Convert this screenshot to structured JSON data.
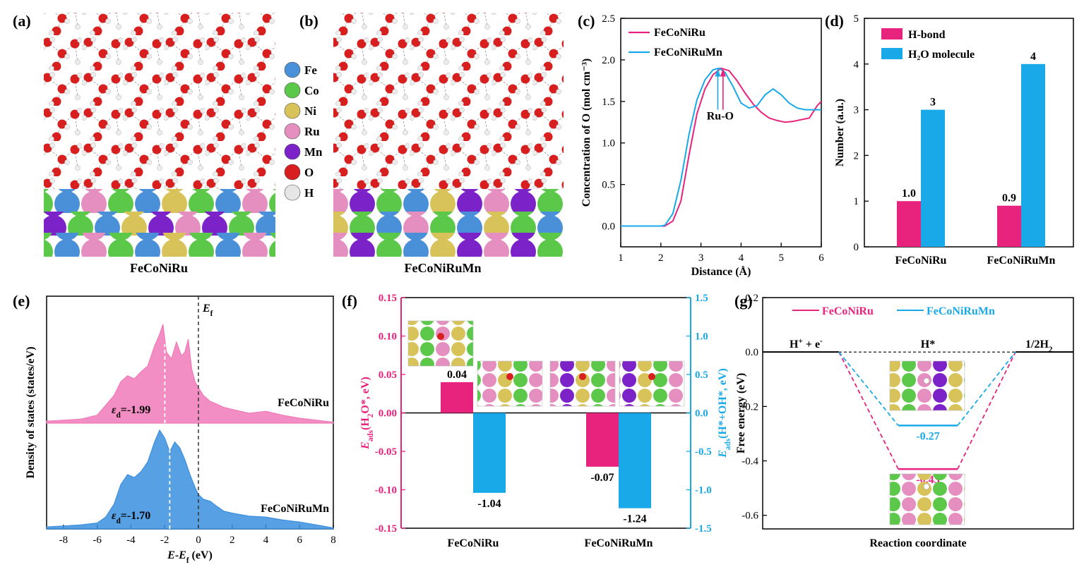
{
  "panel_labels": [
    "(a)",
    "(b)",
    "(c)",
    "(d)",
    "(e)",
    "(f)",
    "(g)"
  ],
  "colors": {
    "magenta": "#E8237D",
    "cyan": "#1AA9E8",
    "Fe": "#4a90d9",
    "Co": "#5cc84a",
    "Ni": "#d8c35a",
    "Ru": "#e48fbf",
    "Mn": "#7b22c8",
    "O": "#d81f1f",
    "H": "#e6e6e6"
  },
  "panel_a": {
    "label": "FeCoNiRu"
  },
  "panel_b": {
    "label": "FeCoNiRuMn"
  },
  "element_legend": [
    {
      "name": "Fe",
      "color": "#4a90d9"
    },
    {
      "name": "Co",
      "color": "#5cc84a"
    },
    {
      "name": "Ni",
      "color": "#d8c35a"
    },
    {
      "name": "Ru",
      "color": "#e48fbf"
    },
    {
      "name": "Mn",
      "color": "#7b22c8"
    },
    {
      "name": "O",
      "color": "#d81f1f"
    },
    {
      "name": "H",
      "color": "#e6e6e6"
    }
  ],
  "chart_data": [
    {
      "panel": "(c)",
      "type": "line",
      "xlabel": "Distance (Å)",
      "ylabel": "Concentration of O (mol cm⁻³)",
      "xlim": [
        1,
        6
      ],
      "ylim": [
        -0.25,
        2.5
      ],
      "xticks": [
        1,
        2,
        3,
        4,
        5,
        6
      ],
      "yticks": [
        0.0,
        0.5,
        1.0,
        1.5,
        2.0,
        2.5
      ],
      "ytick_labels": [
        "0.0",
        "0.5",
        "1.0",
        "1.5",
        "2.0",
        "2.5"
      ],
      "annotation": "Ru-O",
      "series": [
        {
          "name": "FeCoNiRu",
          "color": "#E8237D",
          "x": [
            1.0,
            2.0,
            2.1,
            2.3,
            2.5,
            2.7,
            2.9,
            3.1,
            3.3,
            3.5,
            3.7,
            3.9,
            4.1,
            4.3,
            4.5,
            4.7,
            4.9,
            5.1,
            5.3,
            5.5,
            5.7,
            5.9,
            6.0
          ],
          "y": [
            0.0,
            0.0,
            0.0,
            0.06,
            0.3,
            0.85,
            1.35,
            1.65,
            1.82,
            1.9,
            1.87,
            1.75,
            1.6,
            1.47,
            1.37,
            1.3,
            1.27,
            1.25,
            1.26,
            1.28,
            1.3,
            1.45,
            1.5
          ]
        },
        {
          "name": "FeCoNiRuMn",
          "color": "#1AA9E8",
          "x": [
            1.0,
            2.0,
            2.1,
            2.3,
            2.5,
            2.7,
            2.9,
            3.1,
            3.3,
            3.45,
            3.6,
            3.8,
            4.0,
            4.2,
            4.4,
            4.6,
            4.8,
            5.0,
            5.2,
            5.4,
            5.6,
            5.8,
            6.0
          ],
          "y": [
            0.0,
            0.0,
            0.01,
            0.15,
            0.55,
            1.1,
            1.52,
            1.76,
            1.88,
            1.9,
            1.85,
            1.68,
            1.48,
            1.42,
            1.45,
            1.58,
            1.65,
            1.58,
            1.48,
            1.42,
            1.4,
            1.4,
            1.4
          ]
        }
      ]
    },
    {
      "panel": "(d)",
      "type": "bar",
      "ylabel": "Number (a.u.)",
      "ylim": [
        0,
        5
      ],
      "yticks": [
        0,
        1,
        2,
        3,
        4,
        5
      ],
      "categories": [
        "FeCoNiRu",
        "FeCoNiRuMn"
      ],
      "series": [
        {
          "name": "H-bond",
          "color": "#E8237D",
          "values": [
            1.0,
            0.9
          ],
          "labels": [
            "1.0",
            "0.9"
          ]
        },
        {
          "name": "H₂O molecule",
          "color": "#1AA9E8",
          "values": [
            3,
            4
          ],
          "labels": [
            "3",
            "4"
          ]
        }
      ]
    },
    {
      "panel": "(e)",
      "type": "area",
      "xlabel": "E-E_f (eV)",
      "ylabel": "Density of states (states/eV)",
      "xlim": [
        -9,
        8
      ],
      "xticks": [
        -8,
        -6,
        -4,
        -2,
        0,
        2,
        4,
        6,
        8
      ],
      "fermi_label": "E_f",
      "series": [
        {
          "name": "FeCoNiRu",
          "color": "#f07ab8",
          "d_band_center": "-1.99",
          "d_band_center_value": -1.99,
          "x": [
            -9.0,
            -8.0,
            -7.0,
            -6.0,
            -5.5,
            -5.0,
            -4.6,
            -4.2,
            -3.8,
            -3.4,
            -3.0,
            -2.6,
            -2.3,
            -2.1,
            -1.9,
            -1.6,
            -1.3,
            -1.0,
            -0.8,
            -0.6,
            -0.4,
            -0.2,
            0.0,
            0.3,
            0.7,
            1.0,
            1.5,
            2.0,
            3.0,
            4.0,
            5.0,
            6.0,
            7.0,
            8.0
          ],
          "y": [
            0.02,
            0.03,
            0.04,
            0.08,
            0.18,
            0.28,
            0.42,
            0.48,
            0.45,
            0.52,
            0.58,
            0.78,
            0.9,
            1.0,
            0.72,
            0.65,
            0.82,
            0.68,
            0.72,
            0.85,
            0.55,
            0.42,
            0.36,
            0.28,
            0.22,
            0.2,
            0.16,
            0.14,
            0.1,
            0.12,
            0.08,
            0.05,
            0.03,
            0.01
          ]
        },
        {
          "name": "FeCoNiRuMn",
          "color": "#3a8fde",
          "d_band_center": "-1.70",
          "d_band_center_value": -1.7,
          "x": [
            -9.0,
            -8.0,
            -7.0,
            -6.0,
            -5.5,
            -5.0,
            -4.6,
            -4.2,
            -3.8,
            -3.4,
            -3.0,
            -2.6,
            -2.3,
            -2.0,
            -1.7,
            -1.4,
            -1.1,
            -0.8,
            -0.5,
            -0.2,
            0.0,
            0.3,
            0.7,
            1.0,
            1.5,
            2.0,
            3.0,
            4.0,
            5.0,
            6.0,
            7.0,
            8.0
          ],
          "y": [
            0.02,
            0.03,
            0.04,
            0.06,
            0.12,
            0.25,
            0.45,
            0.55,
            0.52,
            0.58,
            0.68,
            0.88,
            1.0,
            0.92,
            0.78,
            0.88,
            0.82,
            0.7,
            0.55,
            0.42,
            0.35,
            0.3,
            0.28,
            0.24,
            0.18,
            0.16,
            0.13,
            0.12,
            0.09,
            0.07,
            0.04,
            0.01
          ]
        }
      ]
    },
    {
      "panel": "(f)",
      "type": "bar",
      "ylabel_left": "E_ads(H₂O*, eV)",
      "ylabel_right": "E_ads(H*+OH*, eV)",
      "ylim_left": [
        -0.15,
        0.15
      ],
      "ylim_right": [
        -1.5,
        1.5
      ],
      "yticks_left": [
        "-0.15",
        "-0.10",
        "-0.05",
        "0.00",
        "0.05",
        "0.10",
        "0.15"
      ],
      "yticks_right": [
        "-1.5",
        "-1.0",
        "-0.5",
        "0.0",
        "0.5",
        "1.0",
        "1.5"
      ],
      "categories": [
        "FeCoNiRu",
        "FeCoNiRuMn"
      ],
      "series": [
        {
          "name": "E_ads(H2O*)",
          "axis": "left",
          "color": "#E8237D",
          "values": [
            0.04,
            -0.07
          ],
          "labels": [
            "0.04",
            "-0.07"
          ]
        },
        {
          "name": "E_ads(H*+OH*)",
          "axis": "right",
          "color": "#1AA9E8",
          "values": [
            -1.04,
            -1.24
          ],
          "labels": [
            "-1.04",
            "-1.24"
          ]
        }
      ]
    },
    {
      "panel": "(g)",
      "type": "line",
      "xlabel": "Reaction coordinate",
      "ylabel": "Free energy (eV)",
      "ylim": [
        -0.65,
        0.2
      ],
      "yticks": [
        "-0.6",
        "-0.4",
        "-0.2",
        "0.0",
        "0.2"
      ],
      "states": [
        "H⁺ + e⁻",
        "H*",
        "1/2H₂"
      ],
      "series": [
        {
          "name": "FeCoNiRu",
          "color": "#E8237D",
          "values": [
            0.0,
            -0.43,
            0.0
          ],
          "label": "-0.43"
        },
        {
          "name": "FeCoNiRuMn",
          "color": "#1AA9E8",
          "values": [
            0.0,
            -0.27,
            0.0
          ],
          "label": "-0.27"
        }
      ]
    }
  ]
}
